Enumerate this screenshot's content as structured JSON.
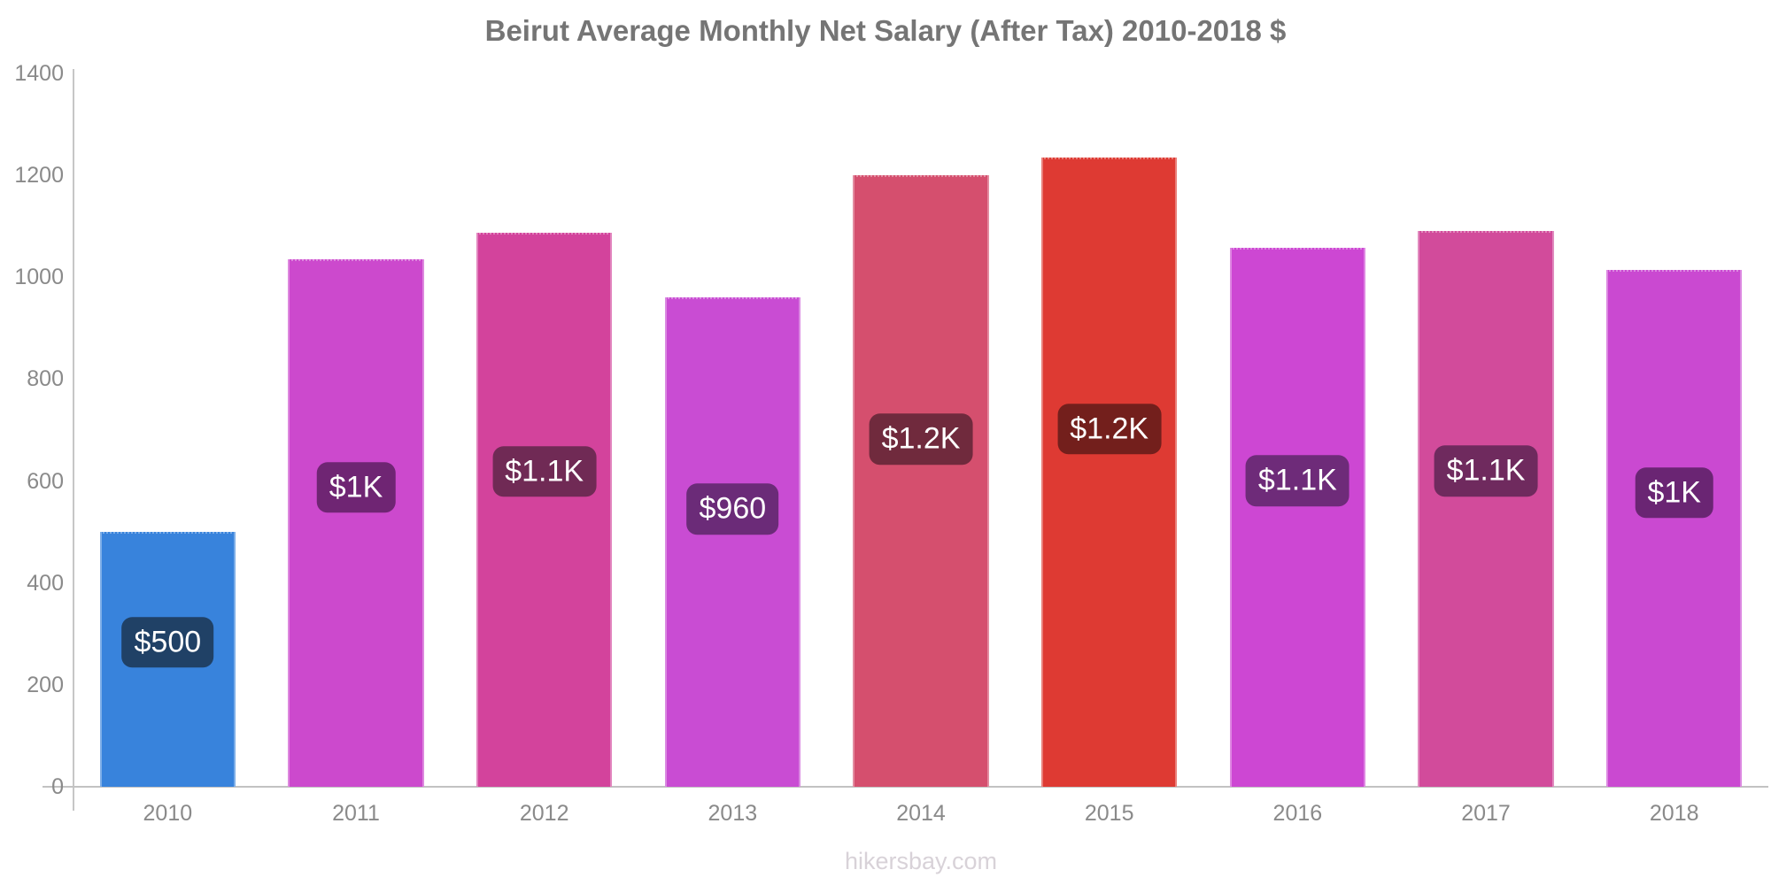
{
  "title": "Beirut Average Monthly Net Salary (After Tax) 2010-2018 $",
  "footer": "hikersbay.com",
  "chart_data": {
    "type": "bar",
    "title": "Beirut Average Monthly Net Salary (After Tax) 2010-2018 $",
    "xlabel": "",
    "ylabel": "",
    "categories": [
      "2010",
      "2011",
      "2012",
      "2013",
      "2014",
      "2015",
      "2016",
      "2017",
      "2018"
    ],
    "values": [
      500,
      1035,
      1088,
      960,
      1200,
      1235,
      1057,
      1090,
      1015
    ],
    "labels": [
      "$500",
      "$1K",
      "$1.1K",
      "$960",
      "$1.2K",
      "$1.2K",
      "$1.1K",
      "$1.1K",
      "$1K"
    ],
    "bar_colors": [
      "#3883dc",
      "#cc49cd",
      "#d3439c",
      "#c94cd3",
      "#d54f6e",
      "#de3a33",
      "#cd47d3",
      "#d24b9b",
      "#ca49d1"
    ],
    "label_bg_colors": [
      "#204166",
      "#6f2573",
      "#702a55",
      "#6b2b78",
      "#702a3d",
      "#731f1c",
      "#6e2b79",
      "#6f2a5e",
      "#6a2573"
    ],
    "label_text_color": "#ffffff",
    "ylim": [
      0,
      1400
    ],
    "yticks": [
      0,
      200,
      400,
      600,
      800,
      1000,
      1200,
      1400
    ],
    "grid": false,
    "legend": "none",
    "watermark": "hikersbay.com"
  },
  "colors": {
    "title": "#757575",
    "axis_line": "#c6c6c6",
    "tick_label": "#8a8a8a",
    "footer": "#d8d2d8",
    "background": "#ffffff"
  }
}
